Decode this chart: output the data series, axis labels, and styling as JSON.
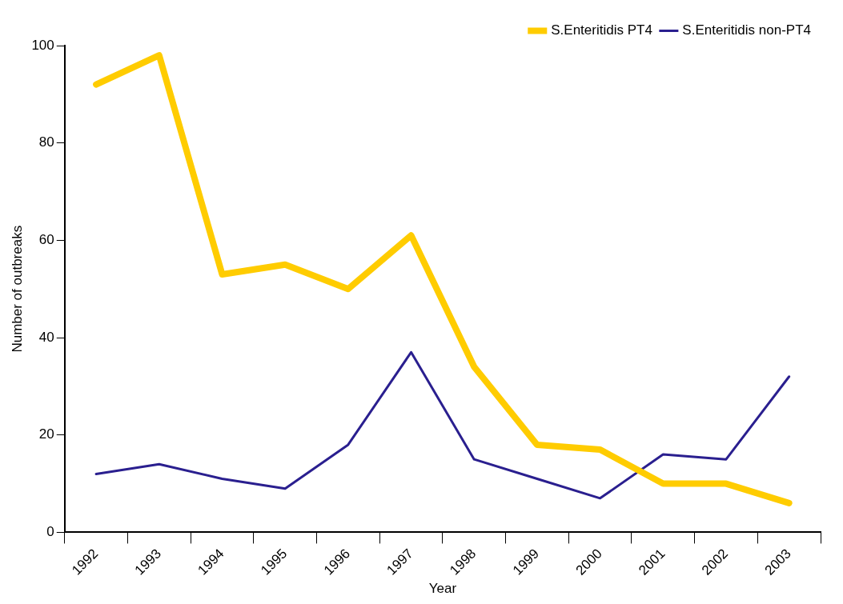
{
  "chart_data": {
    "type": "line",
    "xlabel": "Year",
    "ylabel": "Number of outbreaks",
    "categories": [
      "1992",
      "1993",
      "1994",
      "1995",
      "1996",
      "1997",
      "1998",
      "1999",
      "2000",
      "2001",
      "2002",
      "2003"
    ],
    "series": [
      {
        "name": "S.Enteritidis PT4",
        "color": "#ffcc00",
        "values": [
          92,
          98,
          53,
          55,
          50,
          61,
          34,
          18,
          17,
          10,
          10,
          6
        ]
      },
      {
        "name": "S.Enteritidis non-PT4",
        "color": "#2a1f8f",
        "values": [
          12,
          14,
          11,
          9,
          18,
          37,
          15,
          11,
          7,
          16,
          15,
          32
        ]
      }
    ],
    "ylim": [
      0,
      100
    ],
    "yticks": [
      0,
      20,
      40,
      60,
      80,
      100
    ],
    "grid": false,
    "legend": "top right",
    "marker": "none",
    "line_style": "solid"
  }
}
